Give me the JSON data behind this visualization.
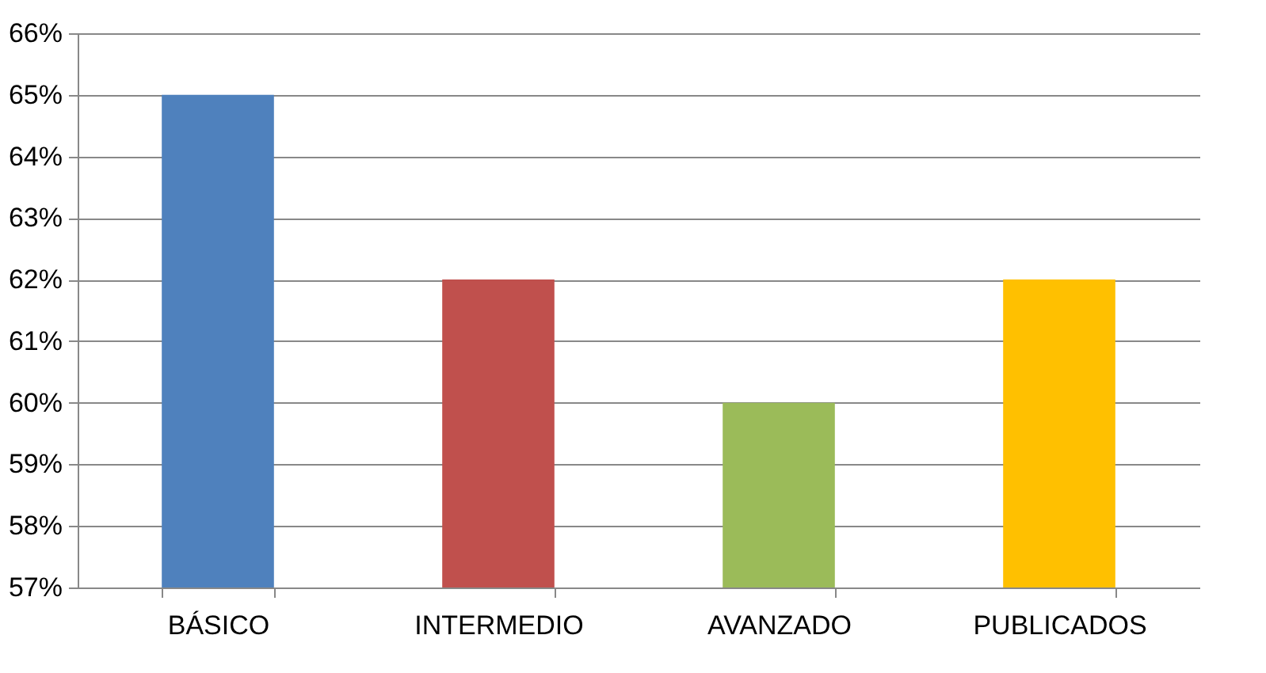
{
  "chart_data": {
    "type": "bar",
    "categories": [
      "BÁSICO",
      "INTERMEDIO",
      "AVANZADO",
      "PUBLICADOS"
    ],
    "values": [
      65,
      62,
      60,
      62
    ],
    "colors": [
      "#4f81bd",
      "#c0504d",
      "#9bbb59",
      "#ffc000"
    ],
    "ylim": [
      57,
      66
    ],
    "yticks": [
      {
        "value": 57,
        "label": "57%"
      },
      {
        "value": 58,
        "label": "58%"
      },
      {
        "value": 59,
        "label": "59%"
      },
      {
        "value": 60,
        "label": "60%"
      },
      {
        "value": 61,
        "label": "61%"
      },
      {
        "value": 62,
        "label": "62%"
      },
      {
        "value": 63,
        "label": "63%"
      },
      {
        "value": 64,
        "label": "64%"
      },
      {
        "value": 65,
        "label": "65%"
      },
      {
        "value": 66,
        "label": "66%"
      }
    ],
    "grid": "y"
  }
}
